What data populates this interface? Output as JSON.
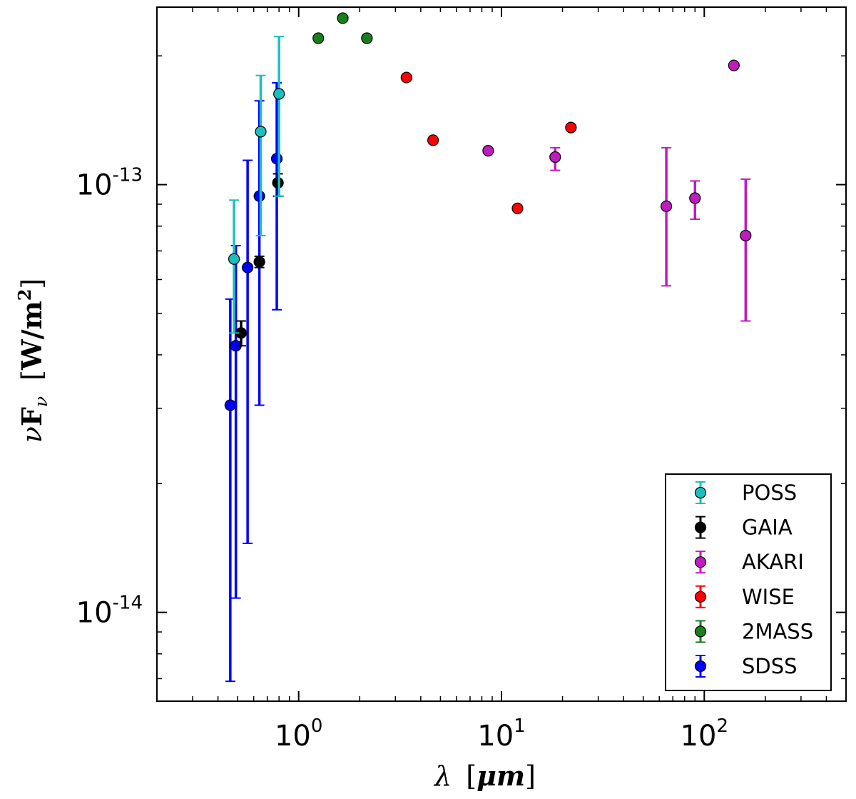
{
  "chart_data": {
    "type": "scatter",
    "title": "",
    "xlabel": {
      "symbol": "λ",
      "unit": "μm"
    },
    "ylabel": {
      "symbol": "ν",
      "flux": "F",
      "subscript": "ν",
      "unit": "W/m",
      "power": "2"
    },
    "xscale": "log",
    "yscale": "log",
    "xlim": [
      0.2,
      500
    ],
    "ylim": [
      6.2e-15,
      2.6e-13
    ],
    "x_tick_labels": [
      {
        "value": 1,
        "base": "10",
        "exp": "0"
      },
      {
        "value": 10,
        "base": "10",
        "exp": "1"
      },
      {
        "value": 100,
        "base": "10",
        "exp": "2"
      }
    ],
    "y_tick_labels": [
      {
        "value": 1e-13,
        "base": "10",
        "exp": "-13"
      },
      {
        "value": 1e-14,
        "base": "10",
        "exp": "-14"
      }
    ],
    "grid": false,
    "legend_position": "bottom-right",
    "series": [
      {
        "name": "POSS",
        "color": "#1bbfbf",
        "points": [
          {
            "x": 0.48,
            "y": 6.7e-14,
            "lo": 4.5e-14,
            "hi": 9.2e-14
          },
          {
            "x": 0.65,
            "y": 1.33e-13,
            "lo": 7.6e-14,
            "hi": 1.8e-13
          },
          {
            "x": 0.8,
            "y": 1.63e-13,
            "lo": 9.4e-14,
            "hi": 2.22e-13
          }
        ]
      },
      {
        "name": "GAIA",
        "color": "#000000",
        "points": [
          {
            "x": 0.52,
            "y": 4.5e-14,
            "lo": 4.2e-14,
            "hi": 4.8e-14
          },
          {
            "x": 0.64,
            "y": 6.6e-14,
            "lo": 6.4e-14,
            "hi": 6.8e-14
          },
          {
            "x": 0.79,
            "y": 1.01e-13,
            "lo": 9.4e-14,
            "hi": 1.06e-13
          }
        ]
      },
      {
        "name": "AKARI",
        "color": "#bf1bbf",
        "points": [
          {
            "x": 8.6,
            "y": 1.2e-13
          },
          {
            "x": 18.4,
            "y": 1.16e-13,
            "lo": 1.08e-13,
            "hi": 1.22e-13
          },
          {
            "x": 65,
            "y": 8.9e-14,
            "lo": 5.8e-14,
            "hi": 1.22e-13
          },
          {
            "x": 90,
            "y": 9.3e-14,
            "lo": 8.3e-14,
            "hi": 1.02e-13
          },
          {
            "x": 140,
            "y": 1.9e-13
          },
          {
            "x": 160,
            "y": 7.6e-14,
            "lo": 4.8e-14,
            "hi": 1.03e-13
          }
        ]
      },
      {
        "name": "WISE",
        "color": "#ff0000",
        "points": [
          {
            "x": 3.4,
            "y": 1.78e-13
          },
          {
            "x": 4.6,
            "y": 1.27e-13
          },
          {
            "x": 12,
            "y": 8.8e-14
          },
          {
            "x": 22,
            "y": 1.36e-13
          }
        ]
      },
      {
        "name": "2MASS",
        "color": "#1a7f1a",
        "points": [
          {
            "x": 1.25,
            "y": 2.2e-13
          },
          {
            "x": 1.65,
            "y": 2.45e-13
          },
          {
            "x": 2.17,
            "y": 2.2e-13
          }
        ]
      },
      {
        "name": "SDSS",
        "color": "#0000ff",
        "points": [
          {
            "x": 0.46,
            "y": 3.05e-14,
            "lo": 6.9e-15,
            "hi": 5.4e-14
          },
          {
            "x": 0.49,
            "y": 4.2e-14,
            "lo": 1.08e-14,
            "hi": 7.2e-14
          },
          {
            "x": 0.56,
            "y": 6.4e-14,
            "lo": 1.45e-14,
            "hi": 1.14e-13
          },
          {
            "x": 0.64,
            "y": 9.4e-14,
            "lo": 3.05e-14,
            "hi": 1.57e-13
          },
          {
            "x": 0.78,
            "y": 1.15e-13,
            "lo": 5.1e-14,
            "hi": 1.73e-13
          }
        ]
      }
    ]
  }
}
